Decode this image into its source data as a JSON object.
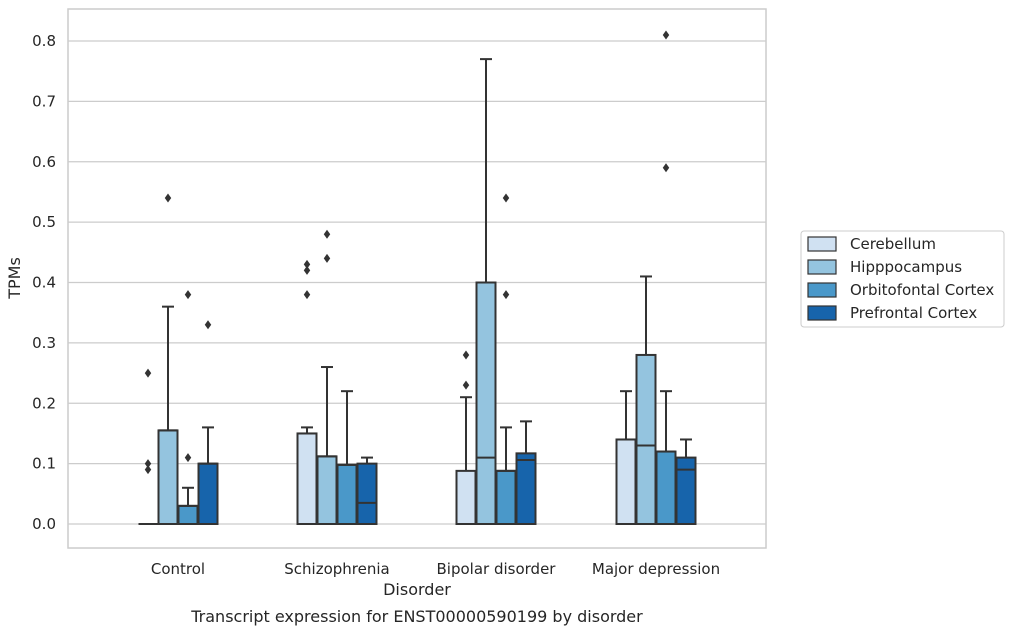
{
  "chart_data": {
    "type": "box",
    "title": "",
    "xlabel": "Disorder",
    "ylabel": "TPMs",
    "caption": "Transcript expression for ENST00000590199 by disorder",
    "ylim": [
      -0.04,
      0.85
    ],
    "yticks": [
      "0.0",
      "0.1",
      "0.2",
      "0.3",
      "0.4",
      "0.5",
      "0.6",
      "0.7",
      "0.8"
    ],
    "grid": "horizontal",
    "legend_position": "right",
    "categories": [
      "Control",
      "Schizophrenia",
      "Bipolar disorder",
      "Major depression"
    ],
    "series": [
      {
        "name": "Cerebellum",
        "color": "#d0e1f2",
        "boxes": [
          {
            "q1": 0.0,
            "median": 0.0,
            "q3": 0.0,
            "whisker_low": 0.0,
            "whisker_high": 0.0,
            "outliers": [
              0.09,
              0.1,
              0.25
            ]
          },
          {
            "q1": 0.0,
            "median": 0.15,
            "q3": 0.15,
            "whisker_low": 0.0,
            "whisker_high": 0.16,
            "outliers": [
              0.38,
              0.42,
              0.43
            ]
          },
          {
            "q1": 0.0,
            "median": 0.0,
            "q3": 0.088,
            "whisker_low": 0.0,
            "whisker_high": 0.21,
            "outliers": [
              0.23,
              0.28
            ]
          },
          {
            "q1": 0.0,
            "median": 0.14,
            "q3": 0.14,
            "whisker_low": 0.0,
            "whisker_high": 0.22,
            "outliers": []
          }
        ]
      },
      {
        "name": "Hipppocampus",
        "color": "#94c4df",
        "boxes": [
          {
            "q1": 0.0,
            "median": 0.155,
            "q3": 0.155,
            "whisker_low": 0.0,
            "whisker_high": 0.36,
            "outliers": [
              0.54
            ]
          },
          {
            "q1": 0.0,
            "median": 0.112,
            "q3": 0.112,
            "whisker_low": 0.0,
            "whisker_high": 0.26,
            "outliers": [
              0.44,
              0.48
            ]
          },
          {
            "q1": 0.0,
            "median": 0.11,
            "q3": 0.4,
            "whisker_low": 0.0,
            "whisker_high": 0.77,
            "outliers": []
          },
          {
            "q1": 0.0,
            "median": 0.13,
            "q3": 0.28,
            "whisker_low": 0.0,
            "whisker_high": 0.41,
            "outliers": []
          }
        ]
      },
      {
        "name": "Orbitofontal Cortex",
        "color": "#4a98c9",
        "boxes": [
          {
            "q1": 0.0,
            "median": 0.03,
            "q3": 0.03,
            "whisker_low": 0.0,
            "whisker_high": 0.06,
            "outliers": [
              0.11,
              0.38
            ]
          },
          {
            "q1": 0.0,
            "median": 0.098,
            "q3": 0.098,
            "whisker_low": 0.0,
            "whisker_high": 0.22,
            "outliers": []
          },
          {
            "q1": 0.0,
            "median": 0.088,
            "q3": 0.088,
            "whisker_low": 0.0,
            "whisker_high": 0.16,
            "outliers": [
              0.38,
              0.54
            ]
          },
          {
            "q1": 0.0,
            "median": 0.12,
            "q3": 0.12,
            "whisker_low": 0.0,
            "whisker_high": 0.22,
            "outliers": [
              0.59,
              0.81
            ]
          }
        ]
      },
      {
        "name": "Prefrontal Cortex",
        "color": "#1764ab",
        "boxes": [
          {
            "q1": 0.0,
            "median": 0.1,
            "q3": 0.1,
            "whisker_low": 0.0,
            "whisker_high": 0.16,
            "outliers": [
              0.33
            ]
          },
          {
            "q1": 0.0,
            "median": 0.035,
            "q3": 0.1,
            "whisker_low": 0.0,
            "whisker_high": 0.11,
            "outliers": []
          },
          {
            "q1": 0.0,
            "median": 0.106,
            "q3": 0.117,
            "whisker_low": 0.0,
            "whisker_high": 0.17,
            "outliers": []
          },
          {
            "q1": 0.0,
            "median": 0.09,
            "q3": 0.11,
            "whisker_low": 0.0,
            "whisker_high": 0.14,
            "outliers": []
          }
        ]
      }
    ]
  }
}
